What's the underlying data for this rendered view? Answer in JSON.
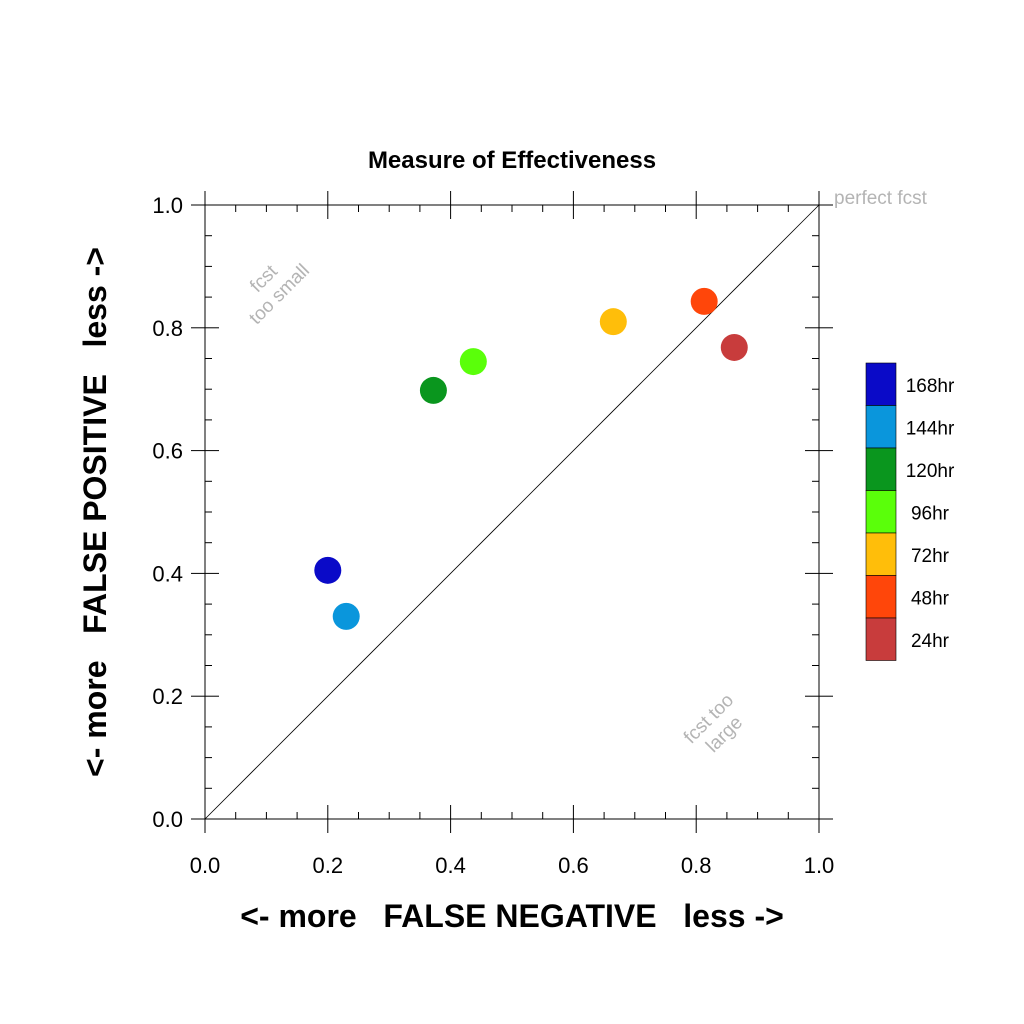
{
  "chart_data": {
    "type": "scatter",
    "title": "Measure of Effectiveness",
    "xlabel": "<- more   FALSE NEGATIVE   less ->",
    "ylabel": "<- more   FALSE POSITIVE   less ->",
    "xlim": [
      0,
      1
    ],
    "ylim": [
      0,
      1
    ],
    "xticks": [
      "0.0",
      "0.2",
      "0.4",
      "0.6",
      "0.8",
      "1.0"
    ],
    "yticks": [
      "0.0",
      "0.2",
      "0.4",
      "0.6",
      "0.8",
      "1.0"
    ],
    "grid": false,
    "reference_line": {
      "from": [
        0,
        0
      ],
      "to": [
        1,
        1
      ]
    },
    "annotations": {
      "perfect": "perfect fcst",
      "too_small_1": "fcst",
      "too_small_2": "too small",
      "too_large_1": "fcst too",
      "too_large_2": "large"
    },
    "legend_position": "right",
    "series": [
      {
        "name": "168hr",
        "color": "#0a0ac8",
        "x": 0.2,
        "y": 0.405
      },
      {
        "name": "144hr",
        "color": "#0a96dc",
        "x": 0.23,
        "y": 0.33
      },
      {
        "name": "120hr",
        "color": "#0a961e",
        "x": 0.372,
        "y": 0.698
      },
      {
        "name": "96hr",
        "color": "#5aff0a",
        "x": 0.437,
        "y": 0.745
      },
      {
        "name": "72hr",
        "color": "#ffbe0a",
        "x": 0.665,
        "y": 0.81
      },
      {
        "name": "48hr",
        "color": "#ff460a",
        "x": 0.813,
        "y": 0.843
      },
      {
        "name": "24hr",
        "color": "#c83c3c",
        "x": 0.862,
        "y": 0.768
      }
    ]
  }
}
